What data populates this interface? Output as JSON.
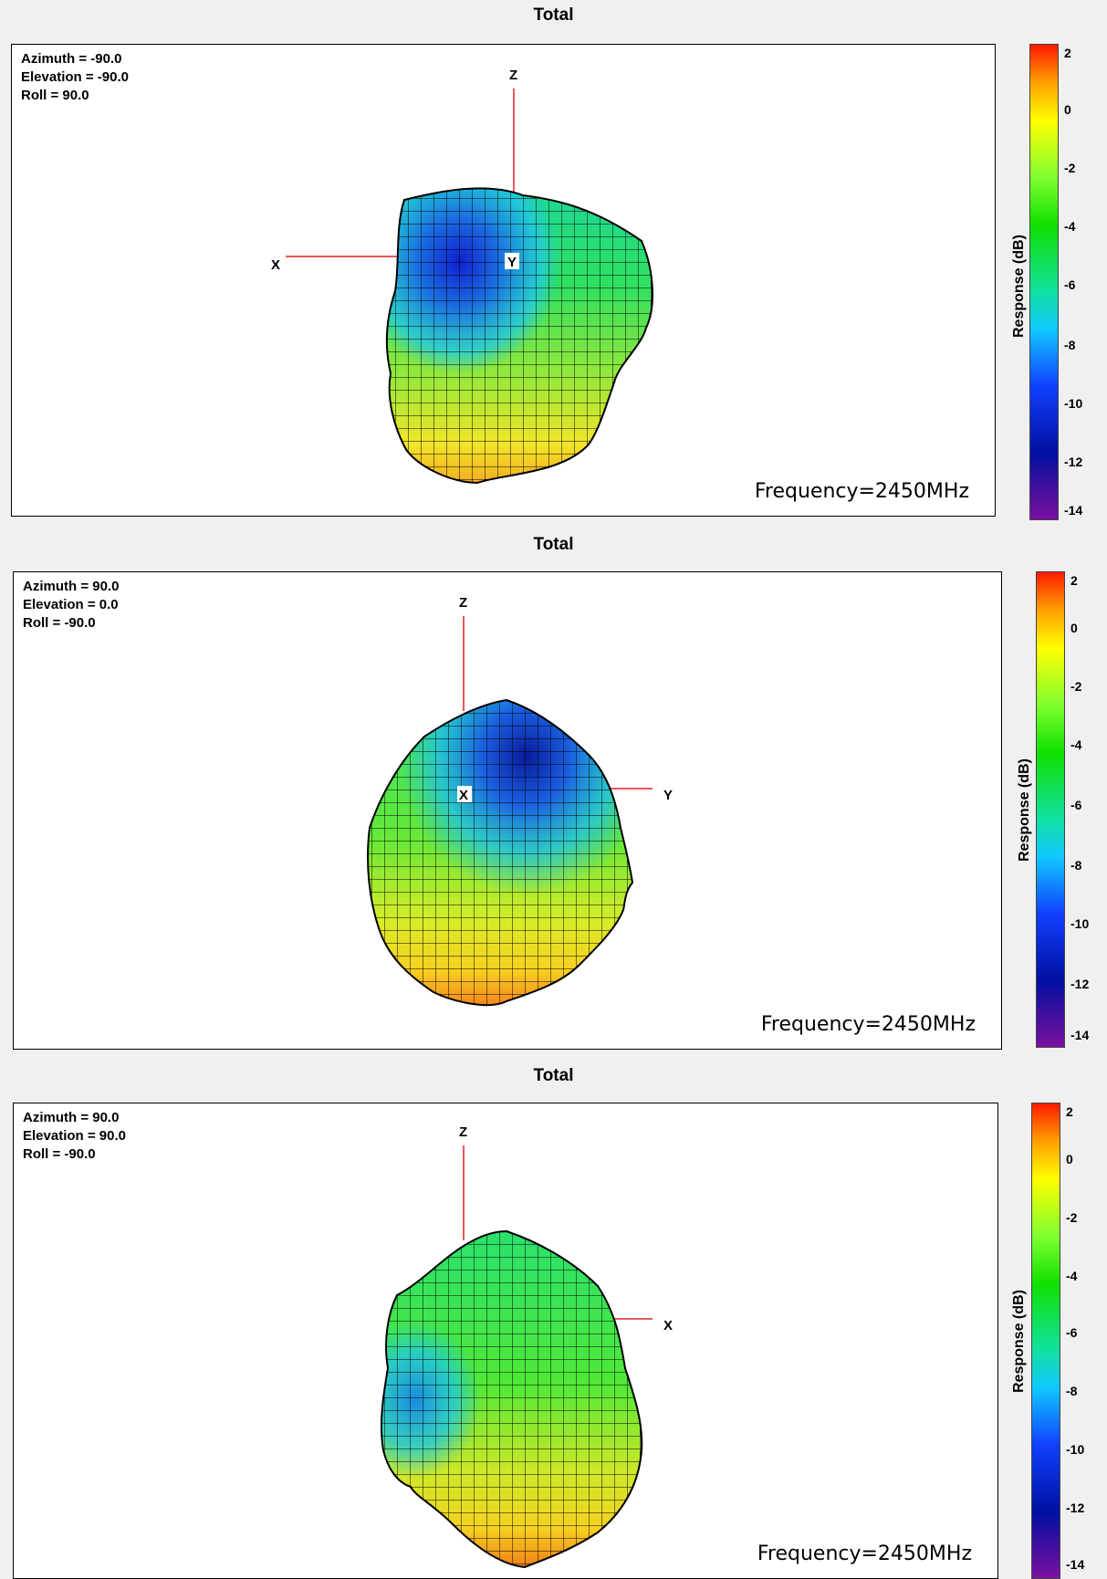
{
  "colors": {
    "background": "#f0f0f0",
    "plot_bg": "#ffffff",
    "axis": "#e02020",
    "mesh": "#000000"
  },
  "chart_data": [
    {
      "type": "surface-3d-radiation-pattern",
      "title": "Total",
      "view": {
        "azimuth": "Azimuth = -90.0",
        "elevation": "Elevation = -90.0",
        "roll": "Roll = 90.0"
      },
      "axes_labels": {
        "z": "Z",
        "x": "X",
        "y": "Y"
      },
      "annotation": "Frequency=2450MHz",
      "colorbar": {
        "label": "Response (dB)",
        "ticks": [
          "2",
          "0",
          "-2",
          "-4",
          "-6",
          "-8",
          "-10",
          "-12",
          "-14"
        ],
        "range": [
          -14,
          3
        ],
        "colormap": "jet"
      }
    },
    {
      "type": "surface-3d-radiation-pattern",
      "title": "Total",
      "view": {
        "azimuth": "Azimuth = 90.0",
        "elevation": "Elevation = 0.0",
        "roll": "Roll = -90.0"
      },
      "axes_labels": {
        "z": "Z",
        "x": "X",
        "y": "Y"
      },
      "annotation": "Frequency=2450MHz",
      "colorbar": {
        "label": "Response (dB)",
        "ticks": [
          "2",
          "0",
          "-2",
          "-4",
          "-6",
          "-8",
          "-10",
          "-12",
          "-14"
        ],
        "range": [
          -14,
          3
        ],
        "colormap": "jet"
      }
    },
    {
      "type": "surface-3d-radiation-pattern",
      "title": "Total",
      "view": {
        "azimuth": "Azimuth = 90.0",
        "elevation": "Elevation = 90.0",
        "roll": "Roll = -90.0"
      },
      "axes_labels": {
        "z": "Z",
        "x": "X"
      },
      "annotation": "Frequency=2450MHz",
      "colorbar": {
        "label": "Response (dB)",
        "ticks": [
          "2",
          "0",
          "-2",
          "-4",
          "-6",
          "-8",
          "-10",
          "-12",
          "-14"
        ],
        "range": [
          -14,
          3
        ],
        "colormap": "jet"
      }
    }
  ]
}
